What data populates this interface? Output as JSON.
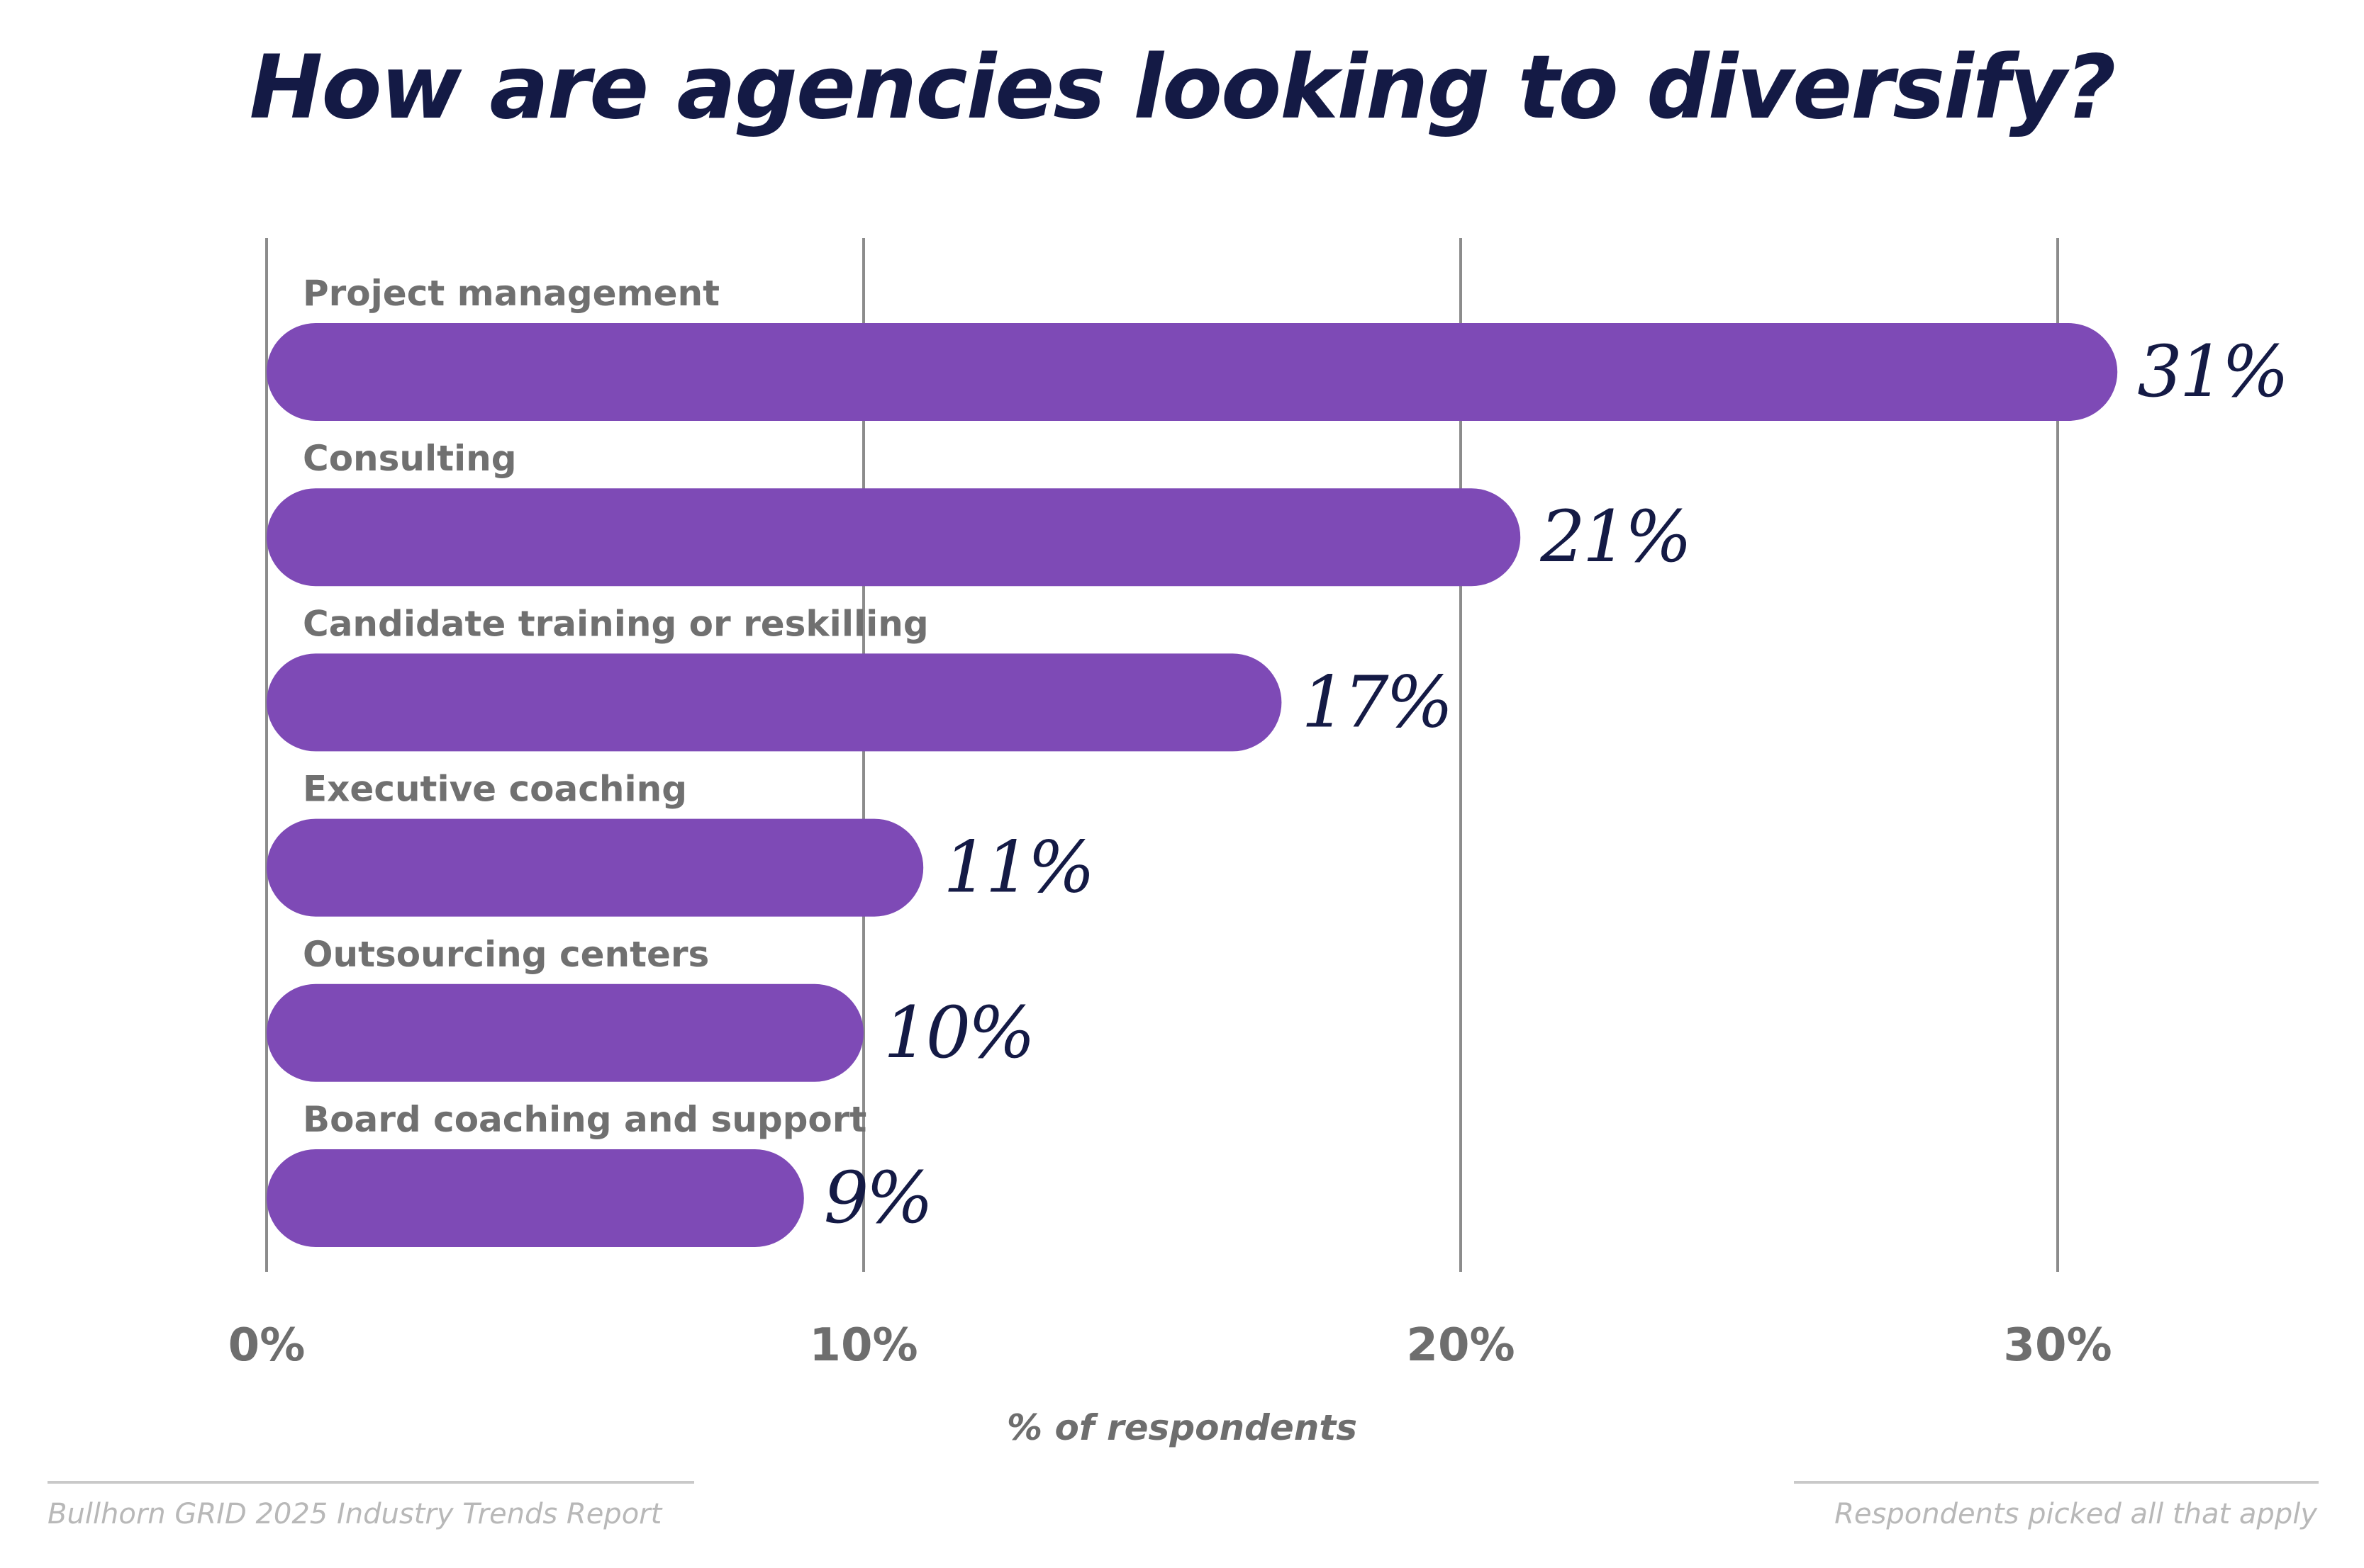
{
  "chart_data": {
    "type": "bar",
    "orientation": "horizontal",
    "title": "How are agencies looking to diversify?",
    "xlabel": "% of respondents",
    "ylabel": "",
    "categories": [
      "Project management",
      "Consulting",
      "Candidate training or reskilling",
      "Executive coaching",
      "Outsourcing centers",
      "Board coaching and support"
    ],
    "values": [
      31,
      21,
      17,
      11,
      10,
      9
    ],
    "value_labels": [
      "31%",
      "21%",
      "17%",
      "11%",
      "10%",
      "9%"
    ],
    "xlim": [
      0,
      30
    ],
    "xticks": [
      0,
      10,
      20,
      30
    ],
    "xtick_labels": [
      "0%",
      "10%",
      "20%",
      "30%"
    ],
    "grid": true,
    "bar_color": "#7e4ab6"
  },
  "footer": {
    "source": "Bullhorn GRID 2025 Industry Trends Report",
    "note": "Respondents picked all that apply"
  },
  "colors": {
    "title": "#141a45",
    "value_label": "#141a45",
    "category_label": "#707070",
    "gridline": "#8c8c8c"
  }
}
